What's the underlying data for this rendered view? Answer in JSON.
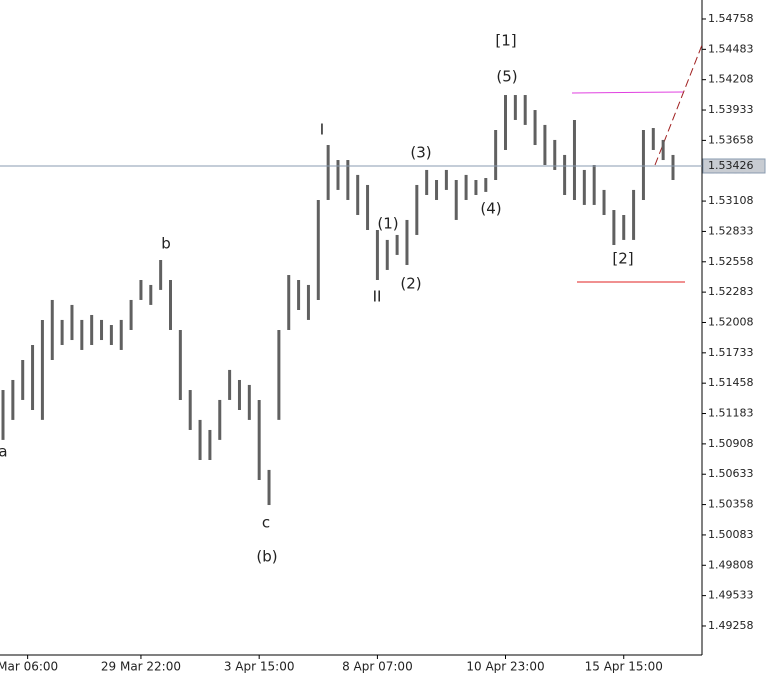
{
  "chart_data": {
    "type": "ohlc",
    "bar_color": "#606060",
    "high": [
      1.51396,
      1.51487,
      1.51668,
      1.51804,
      1.52031,
      1.52212,
      1.52031,
      1.52167,
      1.52031,
      1.52076,
      1.52031,
      1.51985,
      1.52031,
      1.52212,
      1.52393,
      1.52348,
      1.52574,
      1.52393,
      1.5194,
      1.51396,
      1.51125,
      1.51034,
      1.51306,
      1.51578,
      1.51487,
      1.51442,
      1.51306,
      1.50672,
      1.5194,
      1.52438,
      1.52393,
      1.52348,
      1.53118,
      1.53616,
      1.5348,
      1.5348,
      1.53345,
      1.53254,
      1.52846,
      1.52756,
      1.52801,
      1.52937,
      1.53254,
      1.5339,
      1.53299,
      1.5339,
      1.53299,
      1.53345,
      1.53299,
      1.53317,
      1.53752,
      1.54069,
      1.54069,
      1.54069,
      1.53933,
      1.53798,
      1.53662,
      1.53526,
      1.53843,
      1.5339,
      1.53435,
      1.53209,
      1.53027,
      1.52982,
      1.53209,
      1.53752,
      1.5377,
      1.53662,
      1.53526
    ],
    "low": [
      1.50944,
      1.51125,
      1.51306,
      1.51215,
      1.51125,
      1.51668,
      1.51804,
      1.51849,
      1.51759,
      1.51804,
      1.51849,
      1.51804,
      1.51759,
      1.5194,
      1.52212,
      1.52167,
      1.52303,
      1.5194,
      1.51306,
      1.51034,
      1.50762,
      1.50762,
      1.50944,
      1.51306,
      1.51215,
      1.51125,
      1.50581,
      1.50354,
      1.51125,
      1.5194,
      1.52121,
      1.52031,
      1.52212,
      1.53118,
      1.53209,
      1.53118,
      1.52982,
      1.52846,
      1.52393,
      1.52484,
      1.5262,
      1.52529,
      1.52801,
      1.53163,
      1.53118,
      1.53209,
      1.52937,
      1.53118,
      1.53163,
      1.53191,
      1.53299,
      1.53571,
      1.53843,
      1.53798,
      1.53616,
      1.53435,
      1.5339,
      1.53163,
      1.53118,
      1.53073,
      1.53073,
      1.52982,
      1.5271,
      1.52756,
      1.52756,
      1.53118,
      1.53571,
      1.5348,
      1.53299
    ],
    "xlim": [
      0,
      68
    ],
    "xticks": [
      {
        "value": 2.5,
        "label": "Mar 06:00"
      },
      {
        "value": 14,
        "label": "29 Mar 22:00"
      },
      {
        "value": 26,
        "label": "3 Apr 15:00"
      },
      {
        "value": 38,
        "label": "8 Apr 07:00"
      },
      {
        "value": 51,
        "label": "10 Apr 23:00"
      },
      {
        "value": 63,
        "label": "15 Apr 15:00"
      }
    ],
    "ylim": [
      1.48995,
      1.5493
    ],
    "yticks": [
      1.54758,
      1.54483,
      1.54208,
      1.53933,
      1.53658,
      1.53383,
      1.53108,
      1.52833,
      1.52558,
      1.52283,
      1.52008,
      1.51733,
      1.51458,
      1.51183,
      1.50908,
      1.50633,
      1.50358,
      1.50083,
      1.49808,
      1.49533,
      1.49258
    ],
    "last_price": 1.53426,
    "annotations": [
      {
        "text": "a",
        "color": "#8b1a1a"
      },
      {
        "text": "b",
        "color": "#8b1a1a"
      },
      {
        "text": "c",
        "color": "#8b1a1a"
      },
      {
        "text": "(b)",
        "color": "#3c3c8c"
      },
      {
        "text": "I",
        "color": "#8b1a1a"
      },
      {
        "text": "II",
        "color": "#8b1a1a"
      },
      {
        "text": "(1)",
        "color": "#3c3c8c"
      },
      {
        "text": "(2)",
        "color": "#3c3c8c"
      },
      {
        "text": "(3)",
        "color": "#3c3c8c"
      },
      {
        "text": "(4)",
        "color": "#3c3c8c"
      },
      {
        "text": "(5)",
        "color": "#3c3c8c"
      },
      {
        "text": "[1]",
        "color": "#2e7d32"
      },
      {
        "text": "[2]",
        "color": "#2e7d32"
      }
    ]
  }
}
